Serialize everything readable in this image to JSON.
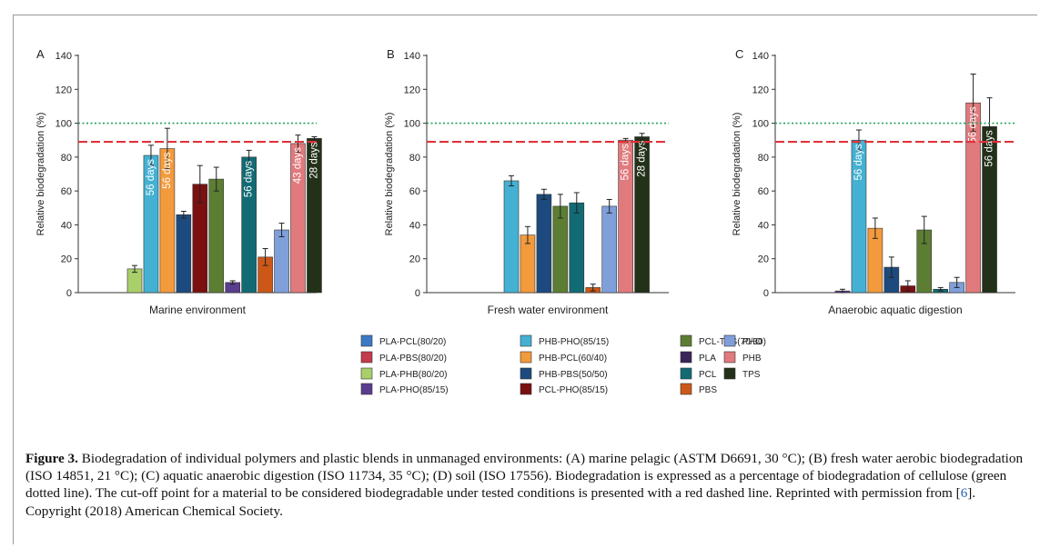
{
  "chart_data": [
    {
      "type": "bar",
      "panel_letter": "A",
      "xlabel": "Marine environment",
      "ylabel": "Relative biodegradation (%)",
      "ylim": [
        0,
        140
      ],
      "yticks": [
        0,
        20,
        40,
        60,
        80,
        100,
        120,
        140
      ],
      "cellulose_reference": 100,
      "cutoff_reference": 89,
      "bars": [
        {
          "name": "PLA-PHB(80/20)",
          "value": 14,
          "error": 2,
          "label": ""
        },
        {
          "name": "PHB-PHO(85/15)",
          "value": 81,
          "error": 6,
          "label": "56 days"
        },
        {
          "name": "PHB-PCL(60/40)",
          "value": 85,
          "error": 12,
          "label": "56 days"
        },
        {
          "name": "PHB-PBS(50/50)",
          "value": 46,
          "error": 2,
          "label": ""
        },
        {
          "name": "PCL-PHO(85/15)",
          "value": 64,
          "error": 11,
          "label": ""
        },
        {
          "name": "PCL-TPS(70/30)",
          "value": 67,
          "error": 7,
          "label": ""
        },
        {
          "name": "PLA-PHO(85/15)",
          "value": 6,
          "error": 1,
          "label": ""
        },
        {
          "name": "PCL",
          "value": 80,
          "error": 4,
          "label": "56 days"
        },
        {
          "name": "PBS",
          "value": 21,
          "error": 5,
          "label": ""
        },
        {
          "name": "PHO",
          "value": 37,
          "error": 4,
          "label": ""
        },
        {
          "name": "PHB",
          "value": 88,
          "error": 5,
          "label": "43 days"
        },
        {
          "name": "TPS",
          "value": 91,
          "error": 1,
          "label": "28 days"
        }
      ]
    },
    {
      "type": "bar",
      "panel_letter": "B",
      "xlabel": "Fresh water environment",
      "ylabel": "Relative biodegradation (%)",
      "ylim": [
        0,
        140
      ],
      "yticks": [
        0,
        20,
        40,
        60,
        80,
        100,
        120,
        140
      ],
      "cellulose_reference": 100,
      "cutoff_reference": 89,
      "bars": [
        {
          "name": "PHB-PHO(85/15)",
          "value": 66,
          "error": 3,
          "label": ""
        },
        {
          "name": "PHB-PCL(60/40)",
          "value": 34,
          "error": 5,
          "label": ""
        },
        {
          "name": "PHB-PBS(50/50)",
          "value": 58,
          "error": 3,
          "label": ""
        },
        {
          "name": "PCL-TPS(70/30)",
          "value": 51,
          "error": 7,
          "label": ""
        },
        {
          "name": "PCL",
          "value": 53,
          "error": 6,
          "label": ""
        },
        {
          "name": "PBS",
          "value": 3,
          "error": 2,
          "label": ""
        },
        {
          "name": "PHO",
          "value": 51,
          "error": 4,
          "label": ""
        },
        {
          "name": "PHB",
          "value": 90,
          "error": 1,
          "label": "56 days"
        },
        {
          "name": "TPS",
          "value": 92,
          "error": 2,
          "label": "28 days"
        }
      ]
    },
    {
      "type": "bar",
      "panel_letter": "C",
      "xlabel": "Anaerobic aquatic digestion",
      "ylabel": "Relative biodegradation (%)",
      "ylim": [
        0,
        140
      ],
      "yticks": [
        0,
        20,
        40,
        60,
        80,
        100,
        120,
        140
      ],
      "cellulose_reference": 100,
      "cutoff_reference": 89,
      "bars": [
        {
          "name": "PLA-PHO(85/15)",
          "value": 1,
          "error": 1,
          "label": ""
        },
        {
          "name": "PHB-PHO(85/15)",
          "value": 90,
          "error": 6,
          "label": "56 days"
        },
        {
          "name": "PHB-PCL(60/40)",
          "value": 38,
          "error": 6,
          "label": ""
        },
        {
          "name": "PHB-PBS(50/50)",
          "value": 15,
          "error": 6,
          "label": ""
        },
        {
          "name": "PCL-PHO(85/15)",
          "value": 4,
          "error": 3,
          "label": ""
        },
        {
          "name": "PCL-TPS(70/30)",
          "value": 37,
          "error": 8,
          "label": ""
        },
        {
          "name": "PCL",
          "value": 2,
          "error": 1,
          "label": ""
        },
        {
          "name": "PHO",
          "value": 6,
          "error": 3,
          "label": ""
        },
        {
          "name": "PHB",
          "value": 112,
          "error": 17,
          "label": "56 days"
        },
        {
          "name": "TPS",
          "value": 98,
          "error": 17,
          "label": "56 days"
        }
      ]
    }
  ],
  "legend": {
    "colors": {
      "PLA-PCL(80/20)": "#3d78c4",
      "PLA-PBS(80/20)": "#c33a4c",
      "PLA-PHB(80/20)": "#a9cf6a",
      "PLA-PHO(85/15)": "#5a3d8e",
      "PHB-PHO(85/15)": "#45b1d2",
      "PHB-PCL(60/40)": "#f39a3c",
      "PHB-PBS(50/50)": "#1d4a7e",
      "PCL-PHO(85/15)": "#7b1010",
      "PCL-TPS(70/30)": "#5c7e33",
      "PLA": "#3a2559",
      "PCL": "#126b74",
      "PBS": "#cc5818",
      "PHO": "#7f9fdb",
      "PHB": "#e07a7c",
      "TPS": "#233119"
    },
    "columns": [
      [
        "PLA-PCL(80/20)",
        "PLA-PBS(80/20)",
        "PLA-PHB(80/20)",
        "PLA-PHO(85/15)"
      ],
      [
        "PHB-PHO(85/15)",
        "PHB-PCL(60/40)",
        "PHB-PBS(50/50)",
        "PCL-PHO(85/15)"
      ],
      [
        "PCL-TPS(70/30)",
        "PLA",
        "PCL",
        "PBS"
      ],
      [
        "PHO",
        "PHB",
        "TPS"
      ]
    ]
  },
  "caption": {
    "label": "Figure 3.",
    "text_before_ref": " Biodegradation of individual polymers and plastic blends in unmanaged environments: (A) marine pelagic (ASTM D6691, 30 °C); (B) fresh water aerobic biodegradation (ISO 14851, 21 °C); (C) aquatic anaerobic digestion (ISO 11734, 35 °C); (D) soil (ISO 17556). Biodegradation is expressed as a percentage of biodegradation of cellulose (green dotted line). The cut-off point for a material to be considered biodegradable under tested conditions is presented with a red dashed line. Reprinted with permission from [",
    "ref": "6",
    "text_after_ref": "]. Copyright (2018) American Chemical Society."
  }
}
